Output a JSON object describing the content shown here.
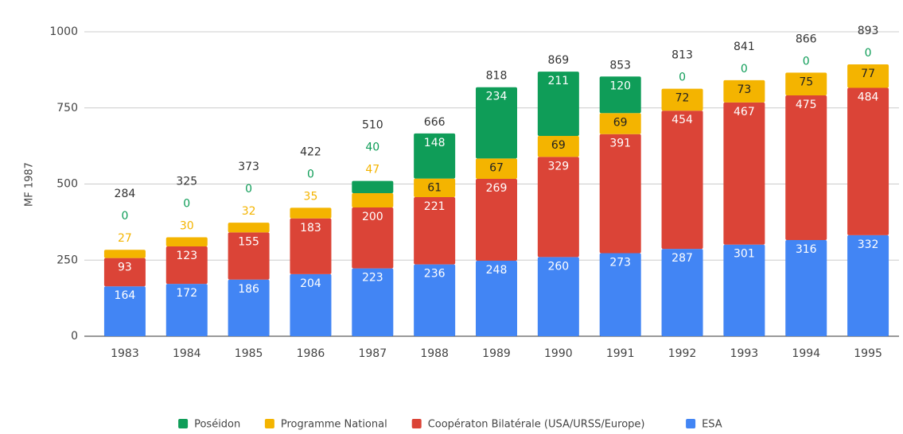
{
  "chart_data": {
    "type": "stacked_bar",
    "y_label": "MF 1987",
    "categories": [
      "1983",
      "1984",
      "1985",
      "1986",
      "1987",
      "1988",
      "1989",
      "1990",
      "1991",
      "1992",
      "1993",
      "1994",
      "1995"
    ],
    "series": [
      {
        "name": "ESA",
        "color": "#4285f4",
        "values": [
          164,
          172,
          186,
          204,
          223,
          236,
          248,
          260,
          273,
          287,
          301,
          316,
          332
        ]
      },
      {
        "name": "Coopératon Bilatérale (USA/URSS/Europe)",
        "color": "#db4437",
        "values": [
          93,
          123,
          155,
          183,
          200,
          221,
          269,
          329,
          391,
          454,
          467,
          475,
          484
        ]
      },
      {
        "name": "Programme National",
        "color": "#f4b400",
        "values": [
          27,
          30,
          32,
          35,
          47,
          61,
          67,
          69,
          69,
          72,
          73,
          75,
          77
        ]
      },
      {
        "name": "Poséidon",
        "color": "#0f9d58",
        "values": [
          0,
          0,
          0,
          0,
          40,
          148,
          234,
          211,
          120,
          0,
          0,
          0,
          0
        ]
      }
    ],
    "totals": [
      284,
      325,
      373,
      422,
      510,
      666,
      818,
      869,
      853,
      813,
      841,
      866,
      893
    ],
    "legend_order": [
      3,
      2,
      1,
      0
    ],
    "ylim": [
      0,
      1000
    ],
    "yticks": [
      0,
      250,
      500,
      750,
      1000
    ],
    "grid": true
  }
}
